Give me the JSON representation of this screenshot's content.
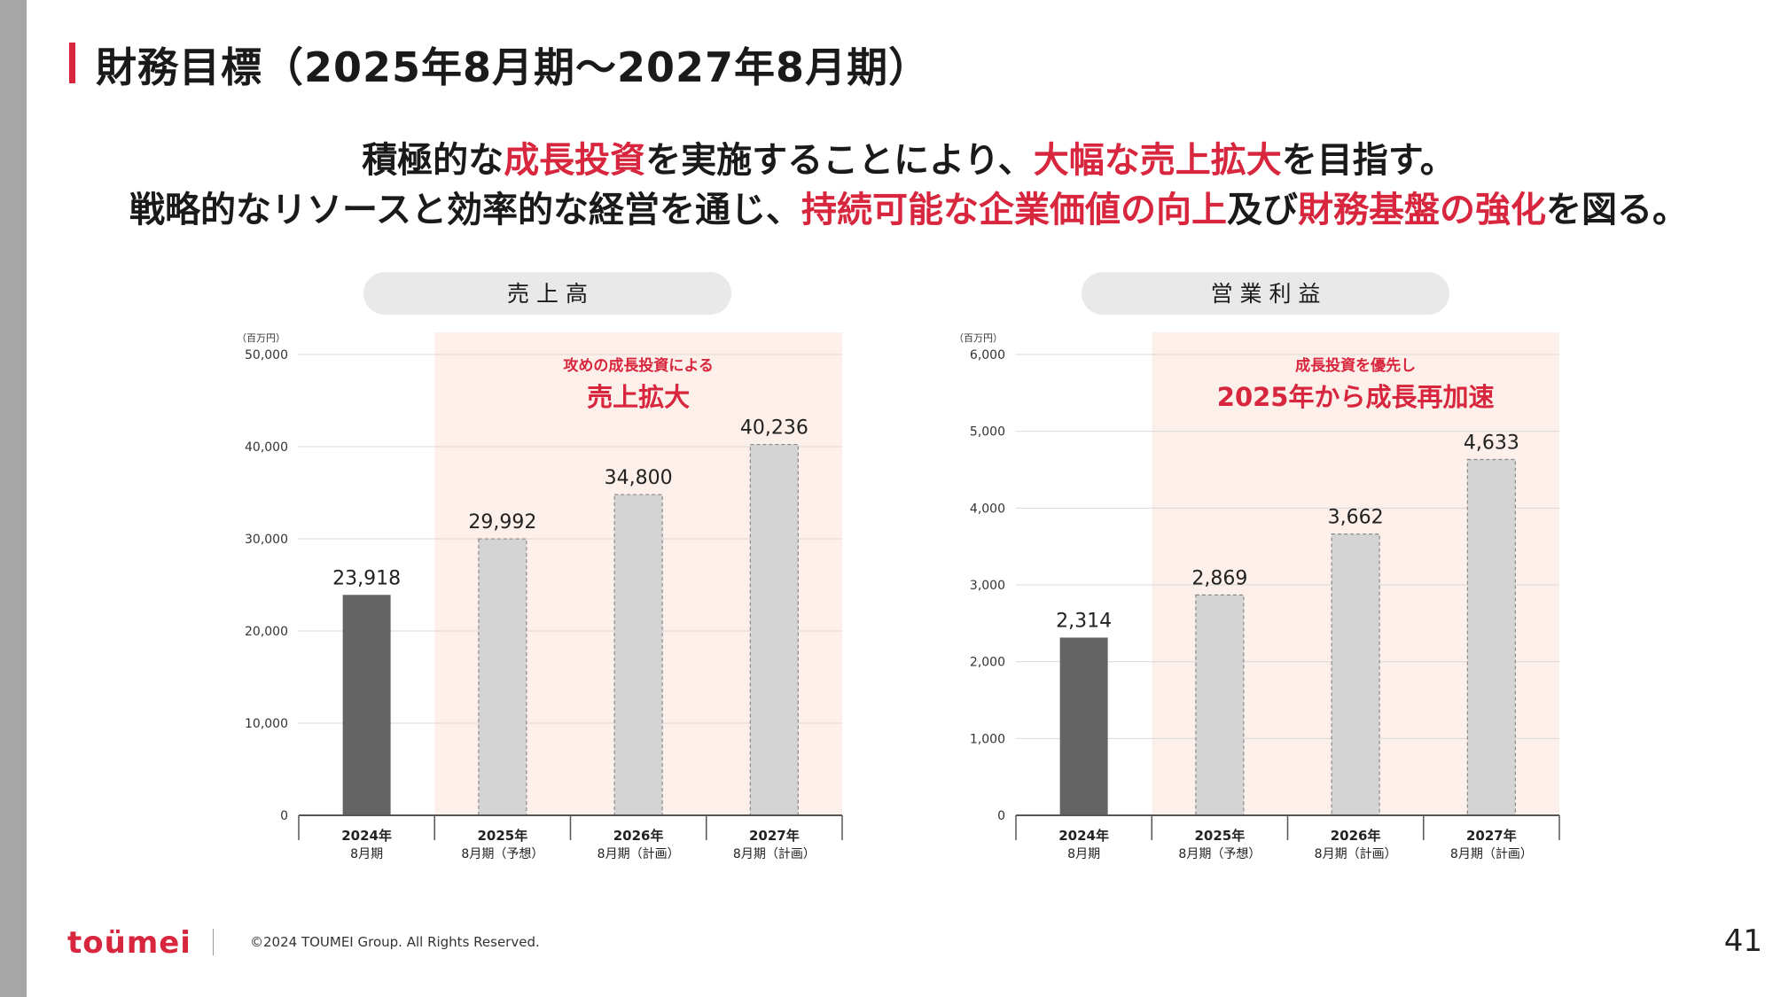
{
  "header": {
    "title": "財務目標（2025年8月期〜2027年8月期）"
  },
  "tagline": {
    "line1": [
      {
        "text": "積極的な",
        "highlight": false
      },
      {
        "text": "成長投資",
        "highlight": true
      },
      {
        "text": "を実施することにより、",
        "highlight": false
      },
      {
        "text": "大幅な売上拡大",
        "highlight": true
      },
      {
        "text": "を目指す。",
        "highlight": false
      }
    ],
    "line2": [
      {
        "text": "戦略的なリソースと効率的な経営を通じ、",
        "highlight": false
      },
      {
        "text": "持続可能な企業価値の向上",
        "highlight": true
      },
      {
        "text": "及び",
        "highlight": false
      },
      {
        "text": "財務基盤の強化",
        "highlight": true
      },
      {
        "text": "を図る。",
        "highlight": false
      }
    ]
  },
  "colors": {
    "accent": "#d7263d",
    "actual_bar": "#646464",
    "forecast_bar": "#d4d4d4",
    "forecast_band": "#fdefe9",
    "pill": "#e9e9e9"
  },
  "chart_data": [
    {
      "type": "bar",
      "title": "売 上 高",
      "unit_label": "（百万円）",
      "categories": [
        [
          "2024年",
          "8月期"
        ],
        [
          "2025年",
          "8月期（予想）"
        ],
        [
          "2026年",
          "8月期（計画）"
        ],
        [
          "2027年",
          "8月期（計画）"
        ]
      ],
      "values": [
        23918,
        29992,
        34800,
        40236
      ],
      "value_labels": [
        "23,918",
        "29,992",
        "34,800",
        "40,236"
      ],
      "bar_styles": [
        "actual",
        "forecast",
        "forecast",
        "forecast"
      ],
      "ylim": [
        0,
        50000
      ],
      "yticks": [
        0,
        10000,
        20000,
        30000,
        40000,
        50000
      ],
      "ytick_labels": [
        "0",
        "10,000",
        "20,000",
        "30,000",
        "40,000",
        "50,000"
      ],
      "grid": true,
      "annotation": {
        "small": "攻めの成長投資による",
        "large": "売上拡大"
      }
    },
    {
      "type": "bar",
      "title": "営 業 利 益",
      "unit_label": "（百万円）",
      "categories": [
        [
          "2024年",
          "8月期"
        ],
        [
          "2025年",
          "8月期（予想）"
        ],
        [
          "2026年",
          "8月期（計画）"
        ],
        [
          "2027年",
          "8月期（計画）"
        ]
      ],
      "values": [
        2314,
        2869,
        3662,
        4633
      ],
      "value_labels": [
        "2,314",
        "2,869",
        "3,662",
        "4,633"
      ],
      "bar_styles": [
        "actual",
        "forecast",
        "forecast",
        "forecast"
      ],
      "ylim": [
        0,
        6000
      ],
      "yticks": [
        0,
        1000,
        2000,
        3000,
        4000,
        5000,
        6000
      ],
      "ytick_labels": [
        "0",
        "1,000",
        "2,000",
        "3,000",
        "4,000",
        "5,000",
        "6,000"
      ],
      "grid": true,
      "annotation": {
        "small": "成長投資を優先し",
        "large": "2025年から成長再加速"
      }
    }
  ],
  "footer": {
    "logo": "toümei",
    "copyright": "©2024 TOUMEI Group. All Rights Reserved.",
    "page_number": "41"
  }
}
